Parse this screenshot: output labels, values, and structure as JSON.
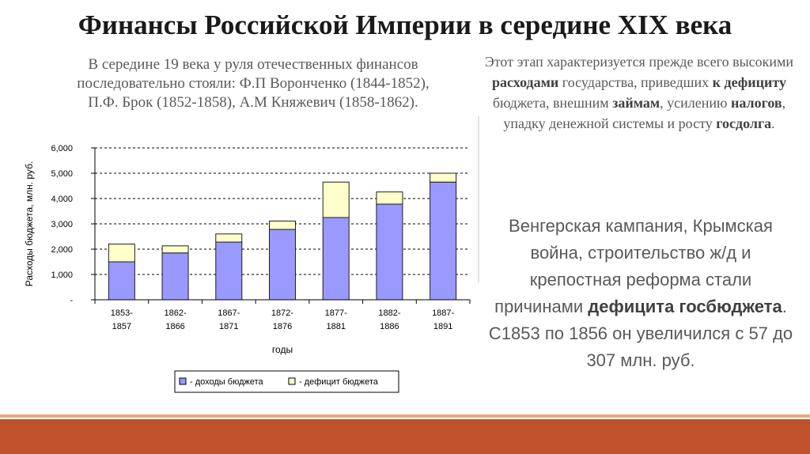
{
  "title": "Финансы Российской Империи в середине XIX века",
  "intro": {
    "line1": "В середине 19 века у руля отечественных финансов",
    "line2": "последовательно стояли: Ф.П Воронченко (1844-1852),",
    "line3": "П.Ф. Брок (1852-1858), А.М Княжевич (1858-1862)."
  },
  "stage": {
    "t1": "Этот этап характеризуется прежде всего высокими ",
    "b1": "расходами",
    "t2": " государства, приведших ",
    "b2": "к дефициту",
    "t3": " бюджета, внешним ",
    "b3": "займам",
    "t4": ", усилению ",
    "b4": "налогов",
    "t5": ", упадку денежной системы и росту ",
    "b5": "госдолга",
    "t6": "."
  },
  "causes": {
    "t1": "Венгерская кампания, Крымская война, строительство ж/д и крепостная реформа стали причинами ",
    "b1": "дефицита госбюджета",
    "t2": ". С1853 по 1856 он увеличился с 57 до 307 млн. руб."
  },
  "colors": {
    "income": "#9999ff",
    "deficit": "#ffffcc",
    "bar_stroke": "#1f1f1f",
    "accent_band": "#c0522b"
  },
  "chart_data": {
    "type": "bar",
    "stacked": true,
    "categories": [
      [
        "1853-",
        "1857"
      ],
      [
        "1862-",
        "1866"
      ],
      [
        "1867-",
        "1871"
      ],
      [
        "1872-",
        "1876"
      ],
      [
        "1877-",
        "1881"
      ],
      [
        "1882-",
        "1886"
      ],
      [
        "1887-",
        "1891"
      ]
    ],
    "series": [
      {
        "name": "- доходы бюджета",
        "color": "#9999ff",
        "values": [
          1500,
          1850,
          2280,
          2780,
          3250,
          3780,
          4650
        ]
      },
      {
        "name": "- дефицит бюджета",
        "color": "#ffffcc",
        "values": [
          700,
          280,
          320,
          330,
          1400,
          480,
          350
        ]
      }
    ],
    "xlabel": "годы",
    "ylabel": "Расходы бюджета, млн. руб.",
    "yticks": [
      "-",
      "1,000",
      "2,000",
      "3,000",
      "4,000",
      "5,000",
      "6,000"
    ],
    "ylim": [
      0,
      6000
    ],
    "grid": "dashed-horizontal",
    "legend": "bottom"
  }
}
